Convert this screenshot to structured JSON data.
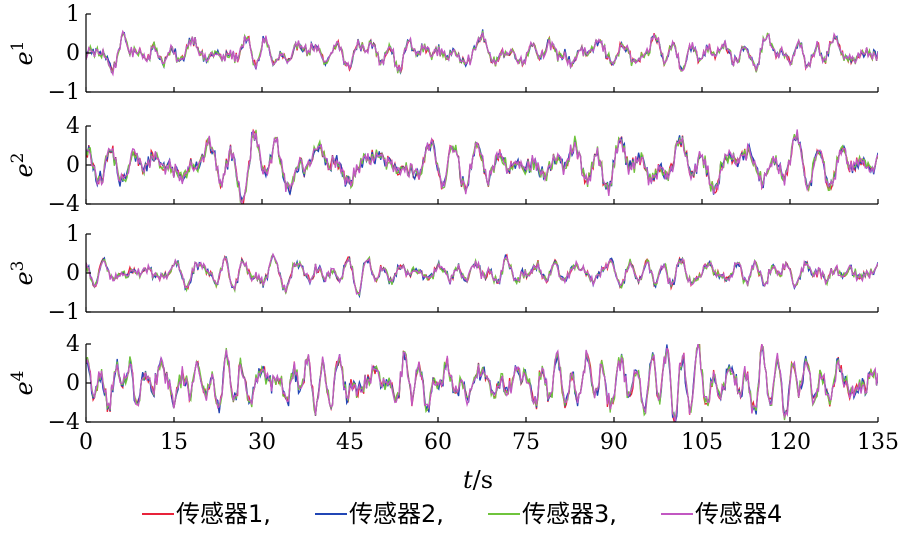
{
  "chart_data": {
    "type": "line",
    "xlabel_var": "t",
    "xlabel_unit": "/s",
    "xlim": [
      0,
      135
    ],
    "xticks": [
      0,
      15,
      30,
      45,
      60,
      75,
      90,
      105,
      120,
      135
    ],
    "xtick_labels": [
      "0",
      "15",
      "30",
      "45",
      "60",
      "75",
      "90",
      "105",
      "120",
      "135"
    ],
    "grid": false,
    "legend_position": "bottom",
    "series_names": [
      "传感器1,",
      "传感器2,",
      "传感器3,",
      "传感器4"
    ],
    "series_colors": [
      "#e8233a",
      "#2146b5",
      "#6fc43c",
      "#c257c2"
    ],
    "panels": [
      {
        "ylabel_base": "e",
        "ylabel_sup": "1",
        "ylim": [
          -1,
          1
        ],
        "yticks": [
          -1,
          0,
          1
        ],
        "ytick_labels": [
          "−1",
          "0",
          "1"
        ],
        "amplitude": 0.55
      },
      {
        "ylabel_base": "e",
        "ylabel_sup": "2",
        "ylim": [
          -4,
          4
        ],
        "yticks": [
          -4,
          0,
          4
        ],
        "ytick_labels": [
          "−4",
          "0",
          "4"
        ],
        "amplitude": 3.9
      },
      {
        "ylabel_base": "e",
        "ylabel_sup": "3",
        "ylim": [
          -1,
          1
        ],
        "yticks": [
          -1,
          0,
          1
        ],
        "ytick_labels": [
          "−1",
          "0",
          "1"
        ],
        "amplitude": 0.55
      },
      {
        "ylabel_base": "e",
        "ylabel_sup": "4",
        "ylim": [
          -4,
          4
        ],
        "yticks": [
          -4,
          0,
          4
        ],
        "ytick_labels": [
          "−4",
          "0",
          "4"
        ],
        "amplitude": 3.9
      }
    ]
  }
}
